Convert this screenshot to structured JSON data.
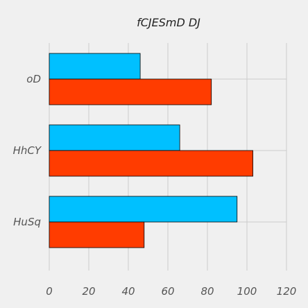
{
  "chart_data": {
    "type": "bar",
    "orientation": "horizontal",
    "title": "fCJESmD DJ",
    "xlabel": "",
    "ylabel": "",
    "categories": [
      "oD",
      "HhCY",
      "HuSq"
    ],
    "series": [
      {
        "values": [
          46,
          66,
          95
        ],
        "color": "#00c0ff"
      },
      {
        "values": [
          82,
          103,
          48
        ],
        "color": "#ff3c00"
      }
    ],
    "xlim": [
      0,
      120
    ],
    "xticks": [
      0,
      20,
      40,
      60,
      80,
      100,
      120
    ],
    "grid": true,
    "legend": "none"
  }
}
